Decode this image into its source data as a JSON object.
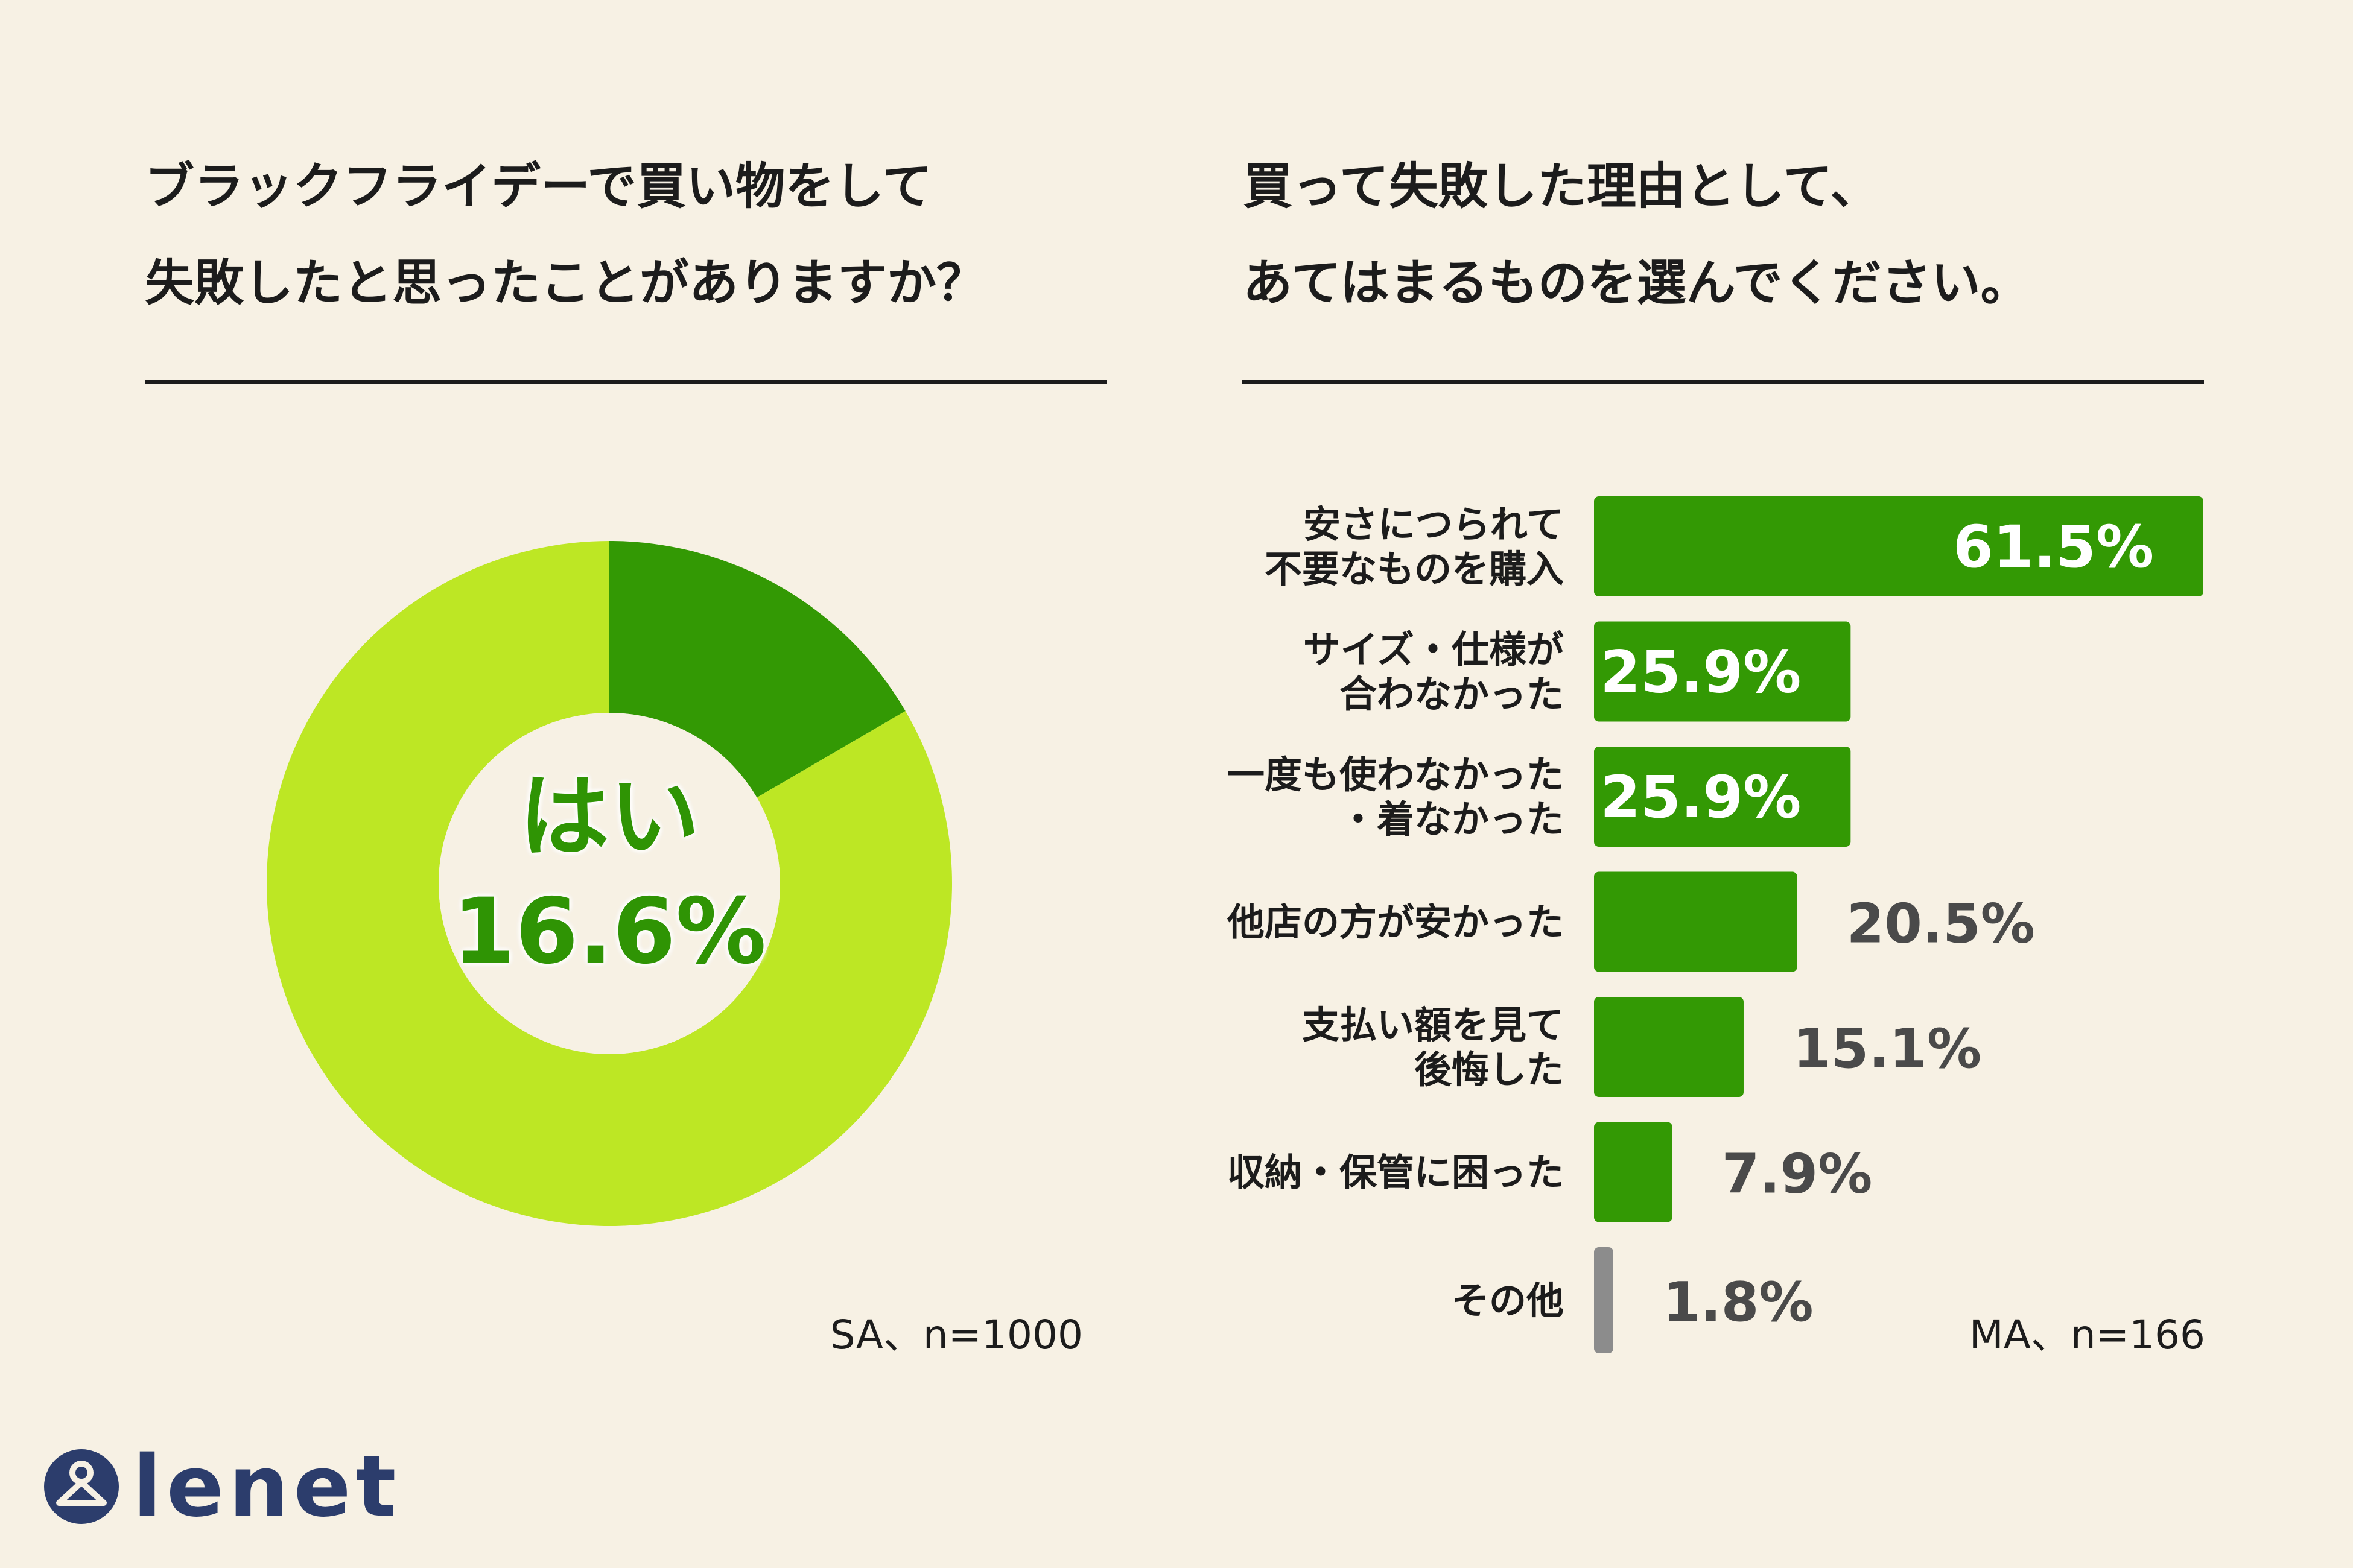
{
  "left_question": {
    "line1": "ブラックフライデーで買い物をして",
    "line2": "失敗したと思ったことがありますか？"
  },
  "right_question": {
    "line1": "買って失敗した理由として、",
    "line2": "あてはまるものを選んでください。"
  },
  "left_note": "SA、n=1000",
  "right_note": "MA、n=166",
  "logo": {
    "text": "lenet",
    "icon": "hanger-person-icon",
    "color": "#2c3d6c"
  },
  "colors": {
    "background": "#f7f1e4",
    "donut_yes": "#339904",
    "donut_no": "#bde724",
    "bar": "#339904",
    "bar_other": "#8c8c8c"
  },
  "chart_data": [
    {
      "type": "pie",
      "variant": "donut",
      "slices": [
        {
          "label": "はい",
          "value": 16.6
        },
        {
          "label": "",
          "value": 83.4
        }
      ],
      "center_label": "はい",
      "center_value": "16.6%"
    },
    {
      "type": "bar",
      "orientation": "horizontal",
      "unit": "%",
      "xlim": [
        0,
        61.5
      ],
      "categories": [
        [
          "安さにつられて",
          "不要なものを購入"
        ],
        [
          "サイズ・仕様が",
          "合わなかった"
        ],
        [
          "一度も使わなかった",
          "・着なかった"
        ],
        [
          "他店の方が安かった"
        ],
        [
          "支払い額を見て",
          "後悔した"
        ],
        [
          "収納・保管に困った"
        ],
        [
          "その他"
        ]
      ],
      "values": [
        61.5,
        25.9,
        25.9,
        20.5,
        15.1,
        7.9,
        1.8
      ],
      "value_labels": [
        "61.5%",
        "25.9%",
        "25.9%",
        "20.5%",
        "15.1%",
        "7.9%",
        "1.8%"
      ]
    }
  ]
}
